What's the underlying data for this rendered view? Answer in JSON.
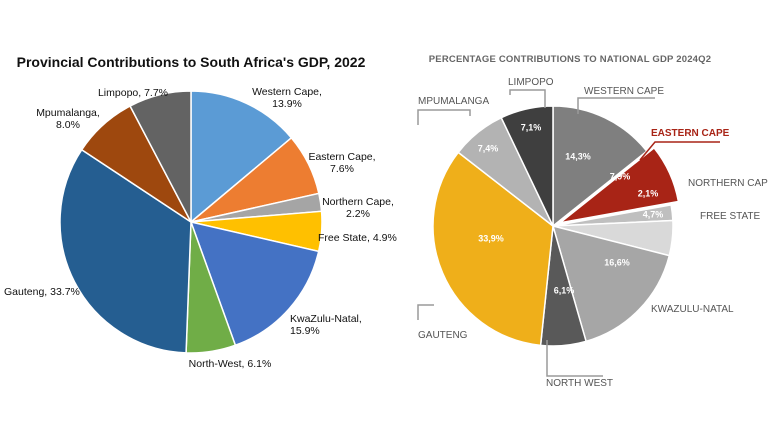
{
  "chart_data": [
    {
      "type": "pie",
      "title": "Provincial Contributions to South Africa's GDP, 2022",
      "slices": [
        {
          "label": "Western Cape",
          "value": 13.9,
          "color": "#5b9bd5",
          "text": [
            "Western Cape,",
            "13.9%"
          ]
        },
        {
          "label": "Eastern Cape",
          "value": 7.6,
          "color": "#ed7d31",
          "text": [
            "Eastern Cape,",
            "7.6%"
          ]
        },
        {
          "label": "Northern Cape",
          "value": 2.2,
          "color": "#a5a5a5",
          "text": [
            "Northern Cape,",
            "2.2%"
          ]
        },
        {
          "label": "Free State",
          "value": 4.9,
          "color": "#ffc000",
          "text": [
            "Free State, 4.9%"
          ]
        },
        {
          "label": "KwaZulu-Natal",
          "value": 15.9,
          "color": "#4472c4",
          "text": [
            "KwaZulu-Natal,",
            "15.9%"
          ]
        },
        {
          "label": "North-West",
          "value": 6.1,
          "color": "#70ad47",
          "text": [
            "North-West, 6.1%"
          ]
        },
        {
          "label": "Gauteng",
          "value": 33.7,
          "color": "#255e91",
          "text": [
            "Gauteng, 33.7%"
          ]
        },
        {
          "label": "Mpumalanga",
          "value": 8.0,
          "color": "#9e480e",
          "text": [
            "Mpumalanga,",
            "8.0%"
          ]
        },
        {
          "label": "Limpopo",
          "value": 7.7,
          "color": "#636363",
          "text": [
            "Limpopo, 7.7%"
          ]
        }
      ]
    },
    {
      "type": "pie",
      "title": "PERCENTAGE CONTRIBUTIONS TO NATIONAL GDP 2024Q2",
      "slices": [
        {
          "label": "WESTERN CAPE",
          "value": 14.3,
          "value_text": "14,3%",
          "color": "#7f7f7f"
        },
        {
          "label": "EASTERN CAPE",
          "value": 7.9,
          "value_text": "7,9%",
          "color": "#a82416",
          "highlight": true
        },
        {
          "label": "NORTHERN CAPE",
          "value": 2.1,
          "value_text": "2,1%",
          "color": "#bfbfbf"
        },
        {
          "label": "FREE STATE",
          "value": 4.7,
          "value_text": "4,7%",
          "color": "#d9d9d9"
        },
        {
          "label": "KWAZULU-NATAL",
          "value": 16.6,
          "value_text": "16,6%",
          "color": "#a6a6a6"
        },
        {
          "label": "NORTH WEST",
          "value": 6.1,
          "value_text": "6,1%",
          "color": "#595959"
        },
        {
          "label": "GAUTENG",
          "value": 33.9,
          "value_text": "33,9%",
          "color": "#efaf1a"
        },
        {
          "label": "MPUMALANGA",
          "value": 7.4,
          "value_text": "7,4%",
          "color": "#b3b3b3"
        },
        {
          "label": "LIMPOPO",
          "value": 7.1,
          "value_text": "7,1%",
          "color": "#3f3f3f"
        }
      ]
    }
  ]
}
